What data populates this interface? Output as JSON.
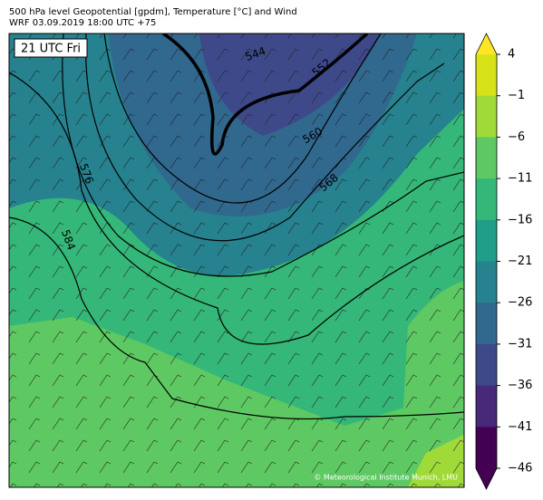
{
  "header": {
    "title": "500 hPa level Geopotential [gpdm], Temperature [°C] and Wind",
    "subtitle": "WRF 03.09.2019 18:00 UTC +75"
  },
  "map": {
    "time_label": "21 UTC Fri",
    "contour_labels": [
      "544",
      "552",
      "560",
      "568",
      "576",
      "584"
    ],
    "credit": "© Meteorological Institute Munich, LMU"
  },
  "colorbar": {
    "ticks": [
      4,
      {
        "value": -1,
        "label": "−1"
      },
      {
        "value": -6,
        "label": "−6"
      },
      {
        "value": -11,
        "label": "−11"
      },
      {
        "value": -16,
        "label": "−16"
      },
      {
        "value": -21,
        "label": "−21"
      },
      {
        "value": -26,
        "label": "−26"
      },
      {
        "value": -31,
        "label": "−31"
      },
      {
        "value": -36,
        "label": "−36"
      },
      {
        "value": -41,
        "label": "−41"
      },
      {
        "value": -46,
        "label": "−46"
      }
    ],
    "colors": [
      "#fde725",
      "#d8e219",
      "#a0da39",
      "#5ec962",
      "#35b779",
      "#1f9e89",
      "#26828e",
      "#31688e",
      "#3e4989",
      "#482878",
      "#440154",
      "#440154"
    ]
  }
}
